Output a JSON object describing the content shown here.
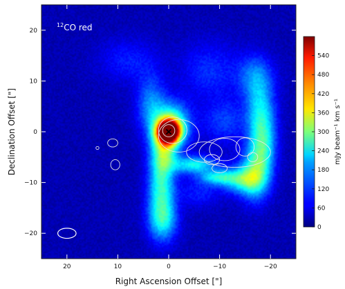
{
  "chart_data": {
    "type": "heatmap",
    "panel_label": "CO red",
    "panel_label_super": "12",
    "xlabel": "Right Ascension Offset [\"]",
    "ylabel": "Declination Offset [\"]",
    "xlim": [
      25,
      -25
    ],
    "ylim": [
      -25,
      25
    ],
    "xticks": [
      20,
      10,
      0,
      -10,
      -20
    ],
    "xtick_labels": [
      "20",
      "10",
      "0",
      "−10",
      "−20"
    ],
    "yticks": [
      20,
      10,
      0,
      -10,
      -20
    ],
    "ytick_labels": [
      "20",
      "10",
      "0",
      "−10",
      "−20"
    ],
    "colorbar": {
      "label": "mJy beam⁻¹ km s⁻¹",
      "range": [
        0,
        600
      ],
      "ticks": [
        0,
        60,
        120,
        180,
        240,
        300,
        360,
        420,
        480,
        540
      ],
      "colormap": "jet"
    },
    "source_marker": {
      "x": 0,
      "y": 0,
      "shape": "x",
      "color": "#000000"
    },
    "beam": {
      "x": 20,
      "y": -20,
      "major": 1.8,
      "minor": 1.0
    },
    "emission_components": [
      {
        "x": 0.0,
        "y": 0.0,
        "sx": 1.6,
        "sy": 1.6,
        "amp": 600
      },
      {
        "x": -0.5,
        "y": 1.5,
        "sx": 2.5,
        "sy": 3.0,
        "amp": 240
      },
      {
        "x": 1.0,
        "y": -4.0,
        "sx": 1.8,
        "sy": 3.0,
        "amp": 220
      },
      {
        "x": 1.5,
        "y": -11.0,
        "sx": 1.8,
        "sy": 4.0,
        "amp": 200
      },
      {
        "x": 1.2,
        "y": -17.5,
        "sx": 2.0,
        "sy": 3.0,
        "amp": 180
      },
      {
        "x": 3.5,
        "y": 5.5,
        "sx": 2.0,
        "sy": 4.0,
        "amp": 120
      },
      {
        "x": -5.0,
        "y": -6.5,
        "sx": 3.0,
        "sy": 1.2,
        "amp": 200
      },
      {
        "x": -9.5,
        "y": -9.0,
        "sx": 2.5,
        "sy": 1.0,
        "amp": 170
      },
      {
        "x": -14.0,
        "y": -9.5,
        "sx": 2.5,
        "sy": 1.8,
        "amp": 180
      },
      {
        "x": -17.0,
        "y": -8.5,
        "sx": 2.0,
        "sy": 3.5,
        "amp": 210
      },
      {
        "x": -18.5,
        "y": -2.5,
        "sx": 1.8,
        "sy": 4.0,
        "amp": 190
      },
      {
        "x": -18.0,
        "y": 4.5,
        "sx": 2.0,
        "sy": 4.0,
        "amp": 150
      },
      {
        "x": -17.0,
        "y": 11.0,
        "sx": 2.5,
        "sy": 3.0,
        "amp": 110
      },
      {
        "x": -8.0,
        "y": 12.0,
        "sx": 4.0,
        "sy": 4.0,
        "amp": 70
      },
      {
        "x": -11.0,
        "y": 2.0,
        "sx": 3.0,
        "sy": 3.0,
        "amp": 80
      },
      {
        "x": 8.0,
        "y": 14.0,
        "sx": 4.0,
        "sy": 3.0,
        "amp": 60
      },
      {
        "x": -6.0,
        "y": -12.0,
        "sx": 3.0,
        "sy": 2.0,
        "amp": 60
      }
    ],
    "background_level": 30,
    "contours": [
      {
        "x": 0.0,
        "y": 0.2,
        "rx": 1.2,
        "ry": 1.2
      },
      {
        "x": -0.8,
        "y": 0.3,
        "rx": 2.8,
        "ry": 2.6
      },
      {
        "x": -2.0,
        "y": -0.8,
        "rx": 4.0,
        "ry": 3.2
      },
      {
        "x": -7.0,
        "y": -4.0,
        "rx": 3.5,
        "ry": 2.0
      },
      {
        "x": -11.0,
        "y": -3.5,
        "rx": 3.0,
        "ry": 2.2
      },
      {
        "x": -8.5,
        "y": -5.5,
        "rx": 1.5,
        "ry": 1.0
      },
      {
        "x": -15.0,
        "y": -3.0,
        "rx": 1.8,
        "ry": 1.8
      },
      {
        "x": -13.0,
        "y": -4.0,
        "rx": 7.0,
        "ry": 3.0
      },
      {
        "x": -10.0,
        "y": -7.2,
        "rx": 1.5,
        "ry": 0.9
      },
      {
        "x": -16.5,
        "y": -5.0,
        "rx": 1.0,
        "ry": 0.9
      },
      {
        "x": 10.5,
        "y": -6.5,
        "rx": 0.9,
        "ry": 1.0
      },
      {
        "x": 11.0,
        "y": -2.2,
        "rx": 1.0,
        "ry": 0.8
      },
      {
        "x": 14.0,
        "y": -3.2,
        "rx": 0.3,
        "ry": 0.3
      }
    ]
  }
}
